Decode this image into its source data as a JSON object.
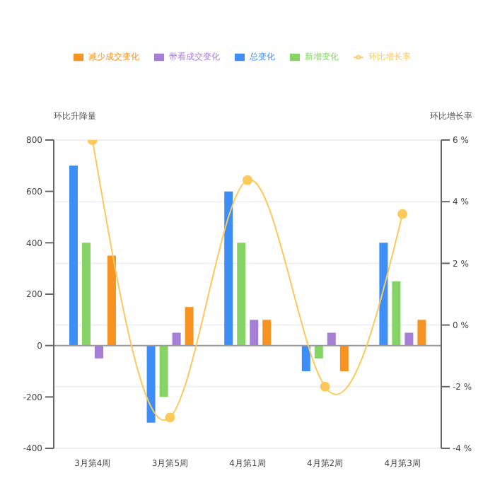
{
  "chart_data": {
    "type": "bar",
    "ylabel": "环比升降量",
    "y2label": "环比增长率",
    "categories": [
      "3月第4周",
      "3月第5周",
      "4月第1周",
      "4月第2周",
      "4月第3周"
    ],
    "series": [
      {
        "name": "总变化",
        "color": "#3d8ef7",
        "values": [
          700,
          -300,
          600,
          -100,
          400
        ]
      },
      {
        "name": "新增变化",
        "color": "#86d466",
        "values": [
          400,
          -200,
          400,
          -50,
          250
        ]
      },
      {
        "name": "带看成交变化",
        "color": "#a57fd6",
        "values": [
          -50,
          50,
          100,
          50,
          50
        ]
      },
      {
        "name": "减少成交变化",
        "color": "#f79421",
        "values": [
          350,
          150,
          100,
          -100,
          100
        ]
      },
      {
        "name": "环比增长率",
        "type": "line",
        "axis": "y2",
        "color": "#fdc95b",
        "values": [
          6,
          -3,
          4.7,
          -2,
          3.6
        ]
      }
    ],
    "ylim": [
      -400,
      800
    ],
    "yticks": [
      -400,
      -200,
      0,
      200,
      400,
      600,
      800
    ],
    "y2lim": [
      -4,
      6
    ],
    "y2ticks": [
      {
        "value": -4,
        "label": "-4 %"
      },
      {
        "value": -2,
        "label": "-2 %"
      },
      {
        "value": 0,
        "label": "0 %"
      },
      {
        "value": 2,
        "label": "2 %"
      },
      {
        "value": 4,
        "label": "4 %"
      },
      {
        "value": 6,
        "label": "6 %"
      }
    ],
    "grid": "y",
    "legend": "top",
    "marker": "circle",
    "line_style": "solid"
  }
}
